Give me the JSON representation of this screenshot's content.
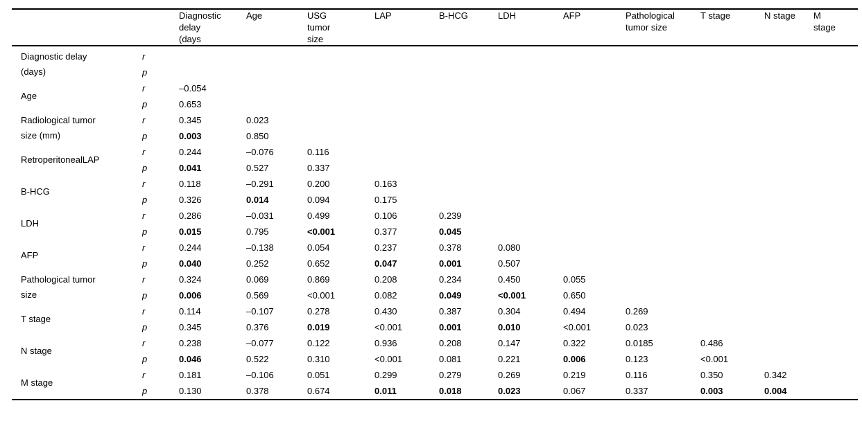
{
  "table": {
    "rp_labels": {
      "r": "r",
      "p": "p"
    },
    "col_headers": [
      "",
      "",
      "Diagnostic\ndelay\n(days",
      "Age",
      "USG\ntumor\nsize",
      "LAP",
      "B-HCG",
      "LDH",
      "AFP",
      "Pathological\ntumor size",
      "T stage",
      "N stage",
      "M\nstage"
    ],
    "rows": [
      {
        "label": "Diagnostic delay\n(days)",
        "r": [],
        "p": [],
        "p_bold": []
      },
      {
        "label": "Age",
        "r": [
          "–0.054"
        ],
        "p": [
          "0.653"
        ],
        "p_bold": []
      },
      {
        "label": "Radiological tumor\nsize (mm)",
        "r": [
          "0.345",
          "0.023"
        ],
        "p": [
          "0.003",
          "0.850"
        ],
        "p_bold": [
          0
        ]
      },
      {
        "label": "RetroperitonealLAP",
        "r": [
          "0.244",
          "–0.076",
          "0.116"
        ],
        "p": [
          "0.041",
          "0.527",
          "0.337"
        ],
        "p_bold": [
          0
        ]
      },
      {
        "label": "B-HCG",
        "r": [
          "0.118",
          "–0.291",
          "0.200",
          "0.163"
        ],
        "p": [
          "0.326",
          "0.014",
          "0.094",
          "0.175"
        ],
        "p_bold": [
          1
        ]
      },
      {
        "label": "LDH",
        "r": [
          "0.286",
          "–0.031",
          "0.499",
          "0.106",
          "0.239"
        ],
        "p": [
          "0.015",
          "0.795",
          "<0.001",
          "0.377",
          "0.045"
        ],
        "p_bold": [
          0,
          2,
          4
        ]
      },
      {
        "label": "AFP",
        "r": [
          "0.244",
          "–0.138",
          "0.054",
          "0.237",
          "0.378",
          "0.080"
        ],
        "p": [
          "0.040",
          "0.252",
          "0.652",
          "0.047",
          "0.001",
          "0.507"
        ],
        "p_bold": [
          0,
          3,
          4
        ]
      },
      {
        "label": "Pathological tumor\nsize",
        "r": [
          "0.324",
          "0.069",
          "0.869",
          "0.208",
          "0.234",
          "0.450",
          "0.055"
        ],
        "p": [
          "0.006",
          "0.569",
          "<0.001",
          "0.082",
          "0.049",
          "<0.001",
          "0.650"
        ],
        "p_bold": [
          0,
          4,
          5
        ]
      },
      {
        "label": "T stage",
        "r": [
          "0.114",
          "–0.107",
          "0.278",
          "0.430",
          "0.387",
          "0.304",
          "0.494",
          "0.269"
        ],
        "p": [
          "0.345",
          "0.376",
          "0.019",
          "<0.001",
          "0.001",
          "0.010",
          "<0.001",
          "0.023"
        ],
        "p_bold": [
          2,
          4,
          5
        ]
      },
      {
        "label": "N stage",
        "r": [
          "0.238",
          "–0.077",
          "0.122",
          "0.936",
          "0.208",
          "0.147",
          "0.322",
          "0.0185",
          "0.486"
        ],
        "p": [
          "0.046",
          "0.522",
          "0.310",
          "<0.001",
          "0.081",
          "0.221",
          "0.006",
          "0.123",
          "<0.001"
        ],
        "p_bold": [
          0,
          6
        ]
      },
      {
        "label": "M stage",
        "r": [
          "0.181",
          "–0.106",
          "0.051",
          "0.299",
          "0.279",
          "0.269",
          "0.219",
          "0.116",
          "0.350",
          "0.342"
        ],
        "p": [
          "0.130",
          "0.378",
          "0.674",
          "0.011",
          "0.018",
          "0.023",
          "0.067",
          "0.337",
          "0.003",
          "0.004"
        ],
        "p_bold": [
          3,
          4,
          5,
          8,
          9
        ]
      }
    ]
  }
}
